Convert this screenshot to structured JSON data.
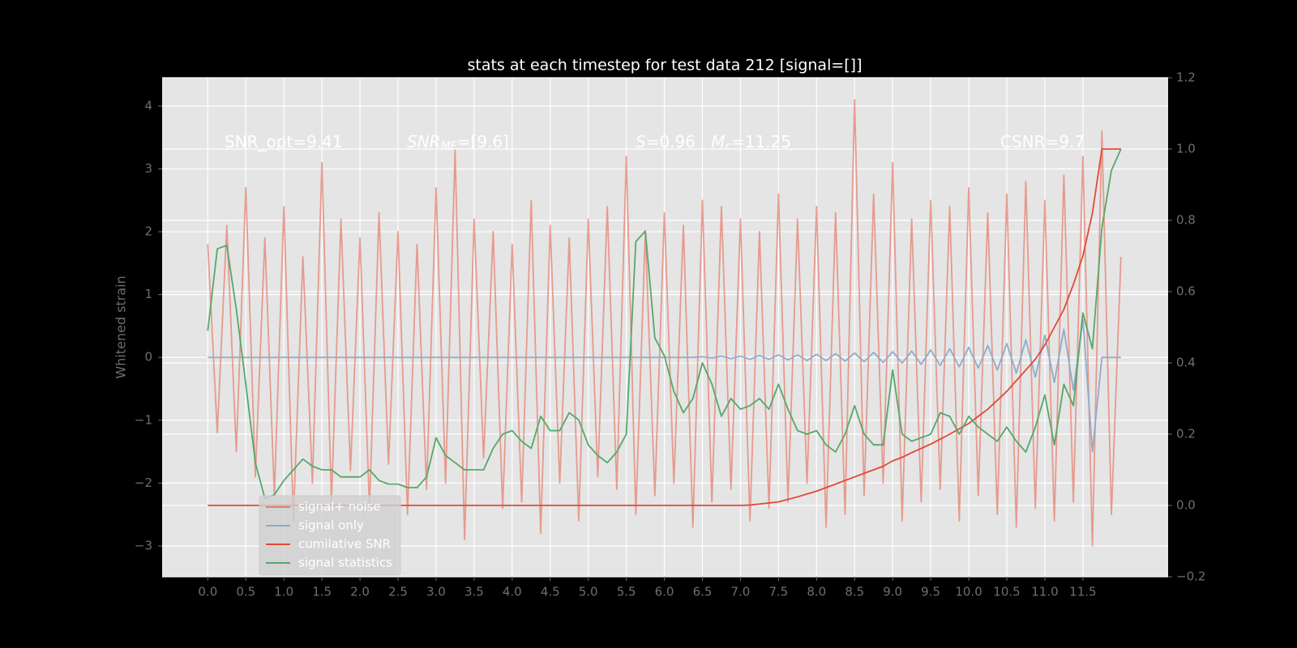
{
  "chart_data": {
    "type": "line",
    "title": "stats at each timestep for test data 212 [signal=[]]",
    "ylabel": "Whitened strain",
    "annotations": [
      [
        {
          "text": "SNR_opt=9.41"
        }
      ],
      [
        {
          "text": "SNR",
          "italic": true
        },
        {
          "text": "MF",
          "italic": true,
          "sub": true
        },
        {
          "text": "=[9.6]"
        }
      ],
      [
        {
          "text": "S",
          "italic": true
        },
        {
          "text": "=0.96   "
        },
        {
          "text": "M",
          "italic": true
        },
        {
          "text": "c",
          "italic": true,
          "sub": true
        },
        {
          "text": "=11.25"
        }
      ],
      [
        {
          "text": "CSNR=9.7"
        }
      ]
    ],
    "xlim": [
      -0.6,
      12.62
    ],
    "ylim": [
      -3.49,
      4.45
    ],
    "y2lim": [
      -0.2,
      1.2
    ],
    "grid": true,
    "legend": "lower left",
    "xticks": [
      {
        "value": 0,
        "label": "0.0"
      },
      0.5,
      {
        "value": 1,
        "label": "1.0"
      },
      1.5,
      {
        "value": 2,
        "label": "2.0"
      },
      2.5,
      {
        "value": 3,
        "label": "3.0"
      },
      3.5,
      {
        "value": 4,
        "label": "4.0"
      },
      4.5,
      {
        "value": 5,
        "label": "5.0"
      },
      5.5,
      {
        "value": 6,
        "label": "6.0"
      },
      6.5,
      {
        "value": 7,
        "label": "7.0"
      },
      7.5,
      {
        "value": 8,
        "label": "8.0"
      },
      8.5,
      {
        "value": 9,
        "label": "9.0"
      },
      9.5,
      {
        "value": 10,
        "label": "10.0"
      },
      10.5,
      {
        "value": 11,
        "label": "11.0"
      },
      11.5
    ],
    "yticks": [
      {
        "value": -3,
        "label": "−3"
      },
      {
        "value": -2,
        "label": "−2"
      },
      {
        "value": -1,
        "label": "−1"
      },
      0,
      1,
      2,
      3,
      4
    ],
    "y2ticks": [
      {
        "value": -0.2,
        "label": "−0.2"
      },
      {
        "value": 0,
        "label": "0.0"
      },
      0.2,
      0.4,
      0.6,
      0.8,
      {
        "value": 1,
        "label": "1.0"
      },
      1.2
    ],
    "x": [
      0,
      0.125,
      0.25,
      0.375,
      0.5,
      0.625,
      0.75,
      0.875,
      1,
      1.125,
      1.25,
      1.375,
      1.5,
      1.625,
      1.75,
      1.875,
      2,
      2.125,
      2.25,
      2.375,
      2.5,
      2.625,
      2.75,
      2.875,
      3,
      3.125,
      3.25,
      3.375,
      3.5,
      3.625,
      3.75,
      3.875,
      4,
      4.125,
      4.25,
      4.375,
      4.5,
      4.625,
      4.75,
      4.875,
      5,
      5.125,
      5.25,
      5.375,
      5.5,
      5.625,
      5.75,
      5.875,
      6,
      6.125,
      6.25,
      6.375,
      6.5,
      6.625,
      6.75,
      6.875,
      7,
      7.125,
      7.25,
      7.375,
      7.5,
      7.625,
      7.75,
      7.875,
      8,
      8.125,
      8.25,
      8.375,
      8.5,
      8.625,
      8.75,
      8.875,
      9,
      9.125,
      9.25,
      9.375,
      9.5,
      9.625,
      9.75,
      9.875,
      10,
      10.125,
      10.25,
      10.375,
      10.5,
      10.625,
      10.75,
      10.875,
      11,
      11.125,
      11.25,
      11.375,
      11.5,
      11.625,
      11.75,
      11.875,
      12
    ],
    "series": [
      {
        "name": "signal+ noise",
        "color": "#e5806f",
        "opacity": 0.75,
        "values": [
          1.8,
          -1.2,
          2.1,
          -1.5,
          2.7,
          -1.9,
          1.9,
          -2.2,
          2.4,
          -2.6,
          1.6,
          -2.0,
          3.1,
          -2.3,
          2.2,
          -1.8,
          1.9,
          -2.4,
          2.3,
          -1.7,
          2.0,
          -2.5,
          1.8,
          -2.1,
          2.7,
          -2.0,
          3.3,
          -2.9,
          2.2,
          -1.6,
          2.0,
          -2.4,
          1.8,
          -2.3,
          2.5,
          -2.8,
          2.1,
          -2.0,
          1.9,
          -2.6,
          2.2,
          -1.9,
          2.4,
          -2.1,
          3.2,
          -2.5,
          2.0,
          -2.2,
          2.3,
          -2.0,
          2.1,
          -2.7,
          2.5,
          -2.3,
          2.4,
          -2.1,
          2.2,
          -2.6,
          2.0,
          -2.4,
          2.6,
          -2.3,
          2.2,
          -2.0,
          2.4,
          -2.7,
          2.3,
          -2.5,
          4.1,
          -2.2,
          2.6,
          -2.0,
          3.1,
          -2.6,
          2.2,
          -2.3,
          2.5,
          -2.1,
          2.4,
          -2.6,
          2.7,
          -2.2,
          2.3,
          -2.5,
          2.6,
          -2.7,
          2.8,
          -2.4,
          2.5,
          -2.6,
          2.9,
          -2.3,
          3.2,
          -3.0,
          3.6,
          -2.5,
          1.6
        ]
      },
      {
        "name": "signal only",
        "color": "#8eaccc",
        "values": [
          0,
          0,
          0,
          0,
          0,
          0,
          0,
          0,
          0,
          0,
          0,
          0,
          0,
          0,
          0,
          0,
          0,
          0,
          0,
          0,
          0,
          0,
          0,
          0,
          0,
          0,
          0,
          0,
          0,
          0,
          0,
          0,
          0,
          0,
          0,
          0,
          0,
          0,
          0,
          0,
          0,
          0,
          0,
          0,
          0,
          0,
          0,
          0,
          0,
          0,
          0,
          0,
          0.01,
          -0.01,
          0.02,
          -0.02,
          0.02,
          -0.03,
          0.03,
          -0.03,
          0.04,
          -0.04,
          0.04,
          -0.05,
          0.05,
          -0.05,
          0.06,
          -0.06,
          0.07,
          -0.07,
          0.08,
          -0.08,
          0.09,
          -0.09,
          0.1,
          -0.11,
          0.12,
          -0.13,
          0.14,
          -0.15,
          0.16,
          -0.17,
          0.19,
          -0.2,
          0.22,
          -0.25,
          0.28,
          -0.31,
          0.35,
          -0.4,
          0.45,
          -0.52,
          0.6,
          -1.5,
          0,
          0,
          0
        ]
      },
      {
        "name": "cumilative SNR",
        "color": "#e24a33",
        "axis": "y2",
        "values": [
          0,
          0,
          0,
          0,
          0,
          0,
          0,
          0,
          0,
          0,
          0,
          0,
          0,
          0,
          0,
          0,
          0,
          0,
          0,
          0,
          0,
          0,
          0,
          0,
          0,
          0,
          0,
          0,
          0,
          0,
          0,
          0,
          0,
          0,
          0,
          0,
          0,
          0,
          0,
          0,
          0,
          0,
          0,
          0,
          0,
          0,
          0,
          0,
          0,
          0,
          0,
          0,
          0,
          0,
          0,
          0,
          0,
          0.001,
          0.004,
          0.007,
          0.01,
          0.017,
          0.024,
          0.032,
          0.04,
          0.05,
          0.06,
          0.07,
          0.08,
          0.09,
          0.1,
          0.11,
          0.125,
          0.135,
          0.148,
          0.16,
          0.172,
          0.186,
          0.2,
          0.215,
          0.23,
          0.25,
          0.27,
          0.295,
          0.32,
          0.35,
          0.38,
          0.41,
          0.45,
          0.5,
          0.55,
          0.62,
          0.7,
          0.82,
          1.0,
          1.0,
          1.0
        ]
      },
      {
        "name": "signal statistics",
        "color": "#55a868",
        "axis": "y2",
        "values": [
          0.49,
          0.72,
          0.73,
          0.55,
          0.34,
          0.12,
          0.02,
          0.03,
          0.07,
          0.1,
          0.13,
          0.11,
          0.1,
          0.1,
          0.08,
          0.08,
          0.08,
          0.1,
          0.07,
          0.06,
          0.06,
          0.05,
          0.05,
          0.08,
          0.19,
          0.14,
          0.12,
          0.1,
          0.1,
          0.1,
          0.16,
          0.2,
          0.21,
          0.18,
          0.16,
          0.25,
          0.21,
          0.21,
          0.26,
          0.24,
          0.17,
          0.14,
          0.12,
          0.15,
          0.2,
          0.74,
          0.77,
          0.47,
          0.42,
          0.32,
          0.26,
          0.3,
          0.4,
          0.34,
          0.25,
          0.3,
          0.27,
          0.28,
          0.3,
          0.27,
          0.34,
          0.27,
          0.21,
          0.2,
          0.21,
          0.17,
          0.15,
          0.2,
          0.28,
          0.2,
          0.17,
          0.17,
          0.38,
          0.2,
          0.18,
          0.19,
          0.2,
          0.26,
          0.25,
          0.2,
          0.25,
          0.22,
          0.2,
          0.18,
          0.22,
          0.18,
          0.15,
          0.22,
          0.31,
          0.17,
          0.34,
          0.28,
          0.54,
          0.44,
          0.78,
          0.94,
          1.0
        ]
      }
    ]
  }
}
